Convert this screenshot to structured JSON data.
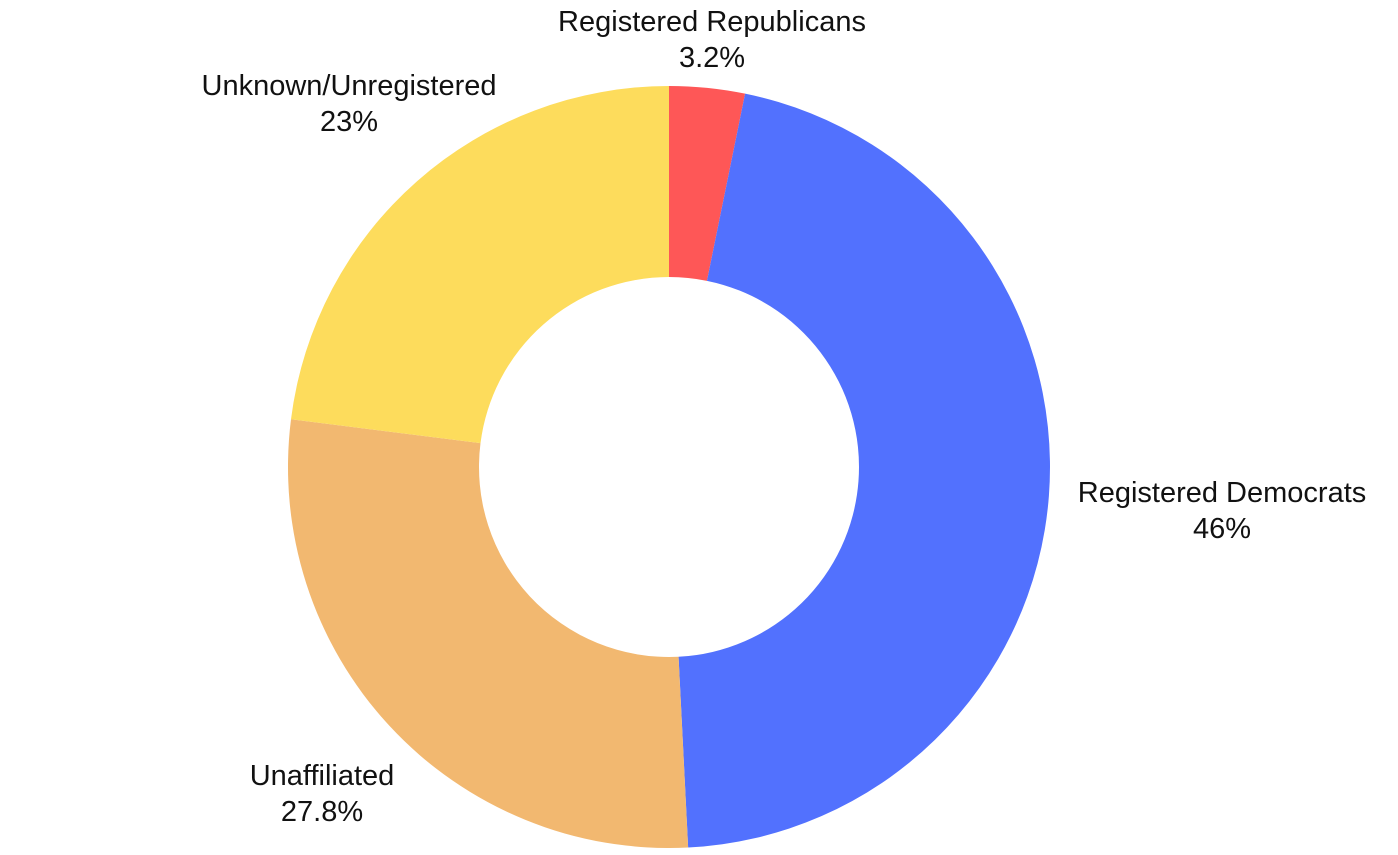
{
  "chart_data": {
    "type": "pie",
    "donut": true,
    "legend": "none",
    "slices": [
      {
        "label": "Registered Republicans",
        "value": 3.2,
        "display": "3.2%",
        "color": "#fe5757"
      },
      {
        "label": "Registered Democrats",
        "value": 46,
        "display": "46%",
        "color": "#5271fe"
      },
      {
        "label": "Unaffiliated",
        "value": 27.8,
        "display": "27.8%",
        "color": "#f2b870"
      },
      {
        "label": "Unknown/Unregistered",
        "value": 23,
        "display": "23%",
        "color": "#fddc5c"
      }
    ]
  }
}
